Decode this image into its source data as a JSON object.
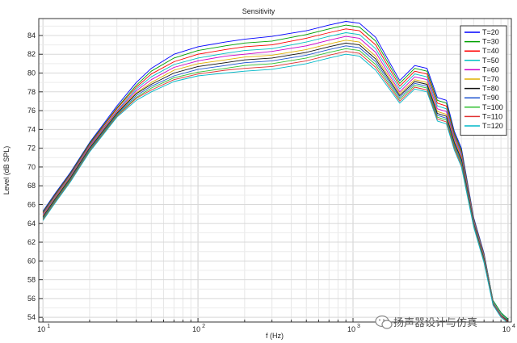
{
  "chart_data": {
    "type": "line",
    "title": "Sensitivity",
    "xlabel": "f (Hz)",
    "ylabel": "Level (dB SPL)",
    "xscale": "log",
    "xlim": [
      9.4,
      10500
    ],
    "ylim": [
      53.5,
      85.8
    ],
    "yticks": [
      54,
      56,
      58,
      60,
      62,
      64,
      66,
      68,
      70,
      72,
      74,
      76,
      78,
      80,
      82,
      84
    ],
    "xticks": [
      {
        "value": 10,
        "base": "10",
        "exp": "1"
      },
      {
        "value": 100,
        "base": "10",
        "exp": "2"
      },
      {
        "value": 1000,
        "base": "10",
        "exp": "3"
      },
      {
        "value": 10000,
        "base": "10",
        "exp": "4"
      }
    ],
    "grid": true,
    "legend_position": "top-right",
    "x": [
      10,
      12,
      15,
      20,
      30,
      40,
      50,
      70,
      100,
      150,
      200,
      300,
      500,
      700,
      900,
      1100,
      1400,
      2000,
      2500,
      3000,
      3500,
      4000,
      4500,
      5000,
      6000,
      7000,
      8000,
      9000,
      10000
    ],
    "series": [
      {
        "name": "T=20",
        "color": "#0000ff",
        "values": [
          65.3,
          67.2,
          69.4,
          72.6,
          76.5,
          79.0,
          80.5,
          82.0,
          82.8,
          83.3,
          83.6,
          83.9,
          84.5,
          85.1,
          85.5,
          85.3,
          83.8,
          79.2,
          80.8,
          80.5,
          77.4,
          77.1,
          73.8,
          72.0,
          64.6,
          60.8,
          55.8,
          54.5,
          53.8
        ]
      },
      {
        "name": "T=30",
        "color": "#00a000",
        "values": [
          65.2,
          67.1,
          69.3,
          72.5,
          76.3,
          78.7,
          80.2,
          81.6,
          82.4,
          82.9,
          83.2,
          83.4,
          84.1,
          84.7,
          85.1,
          84.9,
          83.4,
          78.9,
          80.5,
          80.2,
          77.1,
          76.8,
          73.6,
          71.8,
          64.5,
          60.7,
          55.8,
          54.5,
          53.8
        ]
      },
      {
        "name": "T=40",
        "color": "#ff0000",
        "values": [
          65.1,
          67.0,
          69.2,
          72.4,
          76.2,
          78.5,
          79.9,
          81.2,
          82.0,
          82.5,
          82.8,
          83.0,
          83.7,
          84.3,
          84.7,
          84.5,
          83.0,
          78.6,
          80.2,
          79.9,
          76.8,
          76.5,
          73.4,
          71.6,
          64.4,
          60.6,
          55.7,
          54.4,
          53.7
        ]
      },
      {
        "name": "T=50",
        "color": "#00c0c0",
        "values": [
          65.0,
          66.9,
          69.1,
          72.3,
          76.0,
          78.3,
          79.6,
          80.9,
          81.6,
          82.1,
          82.4,
          82.6,
          83.3,
          83.9,
          84.3,
          84.1,
          82.6,
          78.3,
          79.9,
          79.6,
          76.5,
          76.2,
          73.2,
          71.4,
          64.3,
          60.5,
          55.7,
          54.4,
          53.7
        ]
      },
      {
        "name": "T=60",
        "color": "#cc00cc",
        "values": [
          64.9,
          66.8,
          69.0,
          72.2,
          75.9,
          78.1,
          79.3,
          80.6,
          81.3,
          81.8,
          82.0,
          82.3,
          82.9,
          83.5,
          83.9,
          83.7,
          82.2,
          78.0,
          79.6,
          79.3,
          76.2,
          75.9,
          73.0,
          71.2,
          64.2,
          60.4,
          55.6,
          54.3,
          53.6
        ]
      },
      {
        "name": "T=70",
        "color": "#e0b000",
        "values": [
          64.8,
          66.7,
          68.9,
          72.1,
          75.8,
          77.9,
          79.0,
          80.3,
          81.0,
          81.4,
          81.7,
          81.9,
          82.5,
          83.1,
          83.5,
          83.3,
          81.8,
          77.8,
          79.3,
          79.0,
          75.9,
          75.6,
          72.8,
          71.0,
          64.1,
          60.3,
          55.6,
          54.3,
          53.6
        ]
      },
      {
        "name": "T=80",
        "color": "#111111",
        "values": [
          64.7,
          66.6,
          68.8,
          72.0,
          75.7,
          77.8,
          78.8,
          80.0,
          80.7,
          81.1,
          81.4,
          81.6,
          82.2,
          82.8,
          83.2,
          83.0,
          81.5,
          77.6,
          79.1,
          78.8,
          75.7,
          75.4,
          72.6,
          70.8,
          64.0,
          60.2,
          55.5,
          54.2,
          53.6
        ]
      },
      {
        "name": "T=90",
        "color": "#1f55d0",
        "values": [
          64.6,
          66.5,
          68.7,
          71.9,
          75.6,
          77.6,
          78.6,
          79.7,
          80.4,
          80.8,
          81.1,
          81.3,
          81.9,
          82.5,
          82.9,
          82.7,
          81.2,
          77.4,
          78.9,
          78.6,
          75.5,
          75.2,
          72.4,
          70.6,
          63.9,
          60.1,
          55.5,
          54.2,
          53.5
        ]
      },
      {
        "name": "T=100",
        "color": "#30c030",
        "values": [
          64.5,
          66.4,
          68.6,
          71.8,
          75.5,
          77.4,
          78.4,
          79.5,
          80.1,
          80.5,
          80.8,
          81.0,
          81.6,
          82.2,
          82.6,
          82.4,
          80.9,
          77.2,
          78.7,
          78.4,
          75.3,
          75.0,
          72.2,
          70.4,
          63.8,
          60.0,
          55.4,
          54.1,
          53.5
        ]
      },
      {
        "name": "T=110",
        "color": "#e03030",
        "values": [
          64.4,
          66.3,
          68.5,
          71.7,
          75.4,
          77.3,
          78.2,
          79.3,
          79.9,
          80.3,
          80.5,
          80.7,
          81.3,
          81.9,
          82.3,
          82.1,
          80.6,
          77.0,
          78.5,
          78.2,
          75.1,
          74.8,
          72.0,
          70.2,
          63.7,
          59.9,
          55.4,
          54.1,
          53.5
        ]
      },
      {
        "name": "T=120",
        "color": "#00b8c8",
        "values": [
          64.3,
          66.2,
          68.4,
          71.6,
          75.3,
          77.1,
          78.0,
          79.1,
          79.7,
          80.0,
          80.2,
          80.4,
          81.0,
          81.6,
          82.0,
          81.8,
          80.3,
          76.8,
          78.3,
          78.0,
          74.9,
          74.6,
          71.8,
          70.0,
          63.6,
          59.8,
          55.3,
          54.0,
          53.4
        ]
      }
    ]
  },
  "watermark": {
    "icon": "wechat-icon",
    "text": "扬声器设计与仿真"
  }
}
